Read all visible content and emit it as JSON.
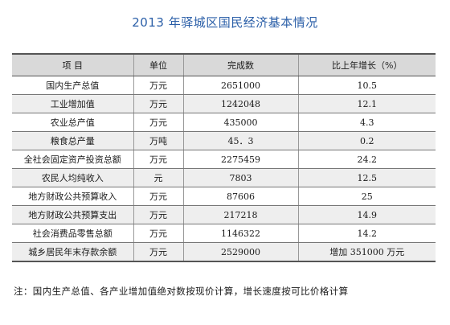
{
  "title": "2013 年驿城区国民经济基本情况",
  "table": {
    "headers": [
      "项 目",
      "单位",
      "完成数",
      "比上年增长（%）"
    ],
    "rows": [
      {
        "item": "国内生产总值",
        "unit": "万元",
        "value": "2651000",
        "growth": "10.5"
      },
      {
        "item": "工业增加值",
        "unit": "万元",
        "value": "1242048",
        "growth": "12.1"
      },
      {
        "item": "农业总产值",
        "unit": "万元",
        "value": "435000",
        "growth": "4.3"
      },
      {
        "item": "粮食总产量",
        "unit": "万吨",
        "value": "45．3",
        "growth": "0.2"
      },
      {
        "item": "全社会固定资产投资总额",
        "unit": "万元",
        "value": "2275459",
        "growth": "24.2"
      },
      {
        "item": "农民人均纯收入",
        "unit": "元",
        "value": "7803",
        "growth": "12.5"
      },
      {
        "item": "地方财政公共预算收入",
        "unit": "万元",
        "value": "87606",
        "growth": "25"
      },
      {
        "item": "地方财政公共预算支出",
        "unit": "万元",
        "value": "217218",
        "growth": "14.9"
      },
      {
        "item": "社会消费品零售总额",
        "unit": "万元",
        "value": "1146322",
        "growth": "14.2"
      },
      {
        "item": "城乡居民年末存款余额",
        "unit": "万元",
        "value": "2529000",
        "growth": "增加 351000 万元"
      }
    ]
  },
  "note": "注：国内生产总值、各产业增加值绝对数按现价计算，增长速度按可比价格计算"
}
